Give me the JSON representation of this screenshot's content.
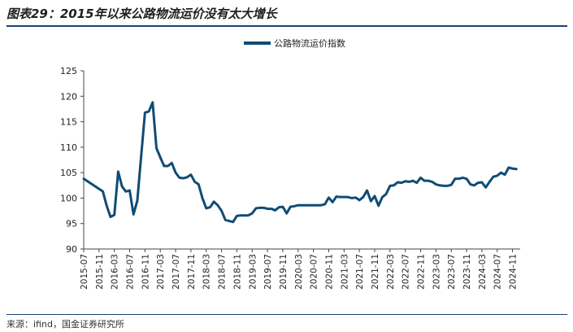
{
  "figure": {
    "title": "图表29：2015年以来公路物流运价没有太大增长",
    "source": "来源：ifind，国金证券研究所"
  },
  "colors": {
    "series": "#0f4c75",
    "axis": "#444444",
    "rule": "#1b3f72"
  },
  "chart_data": {
    "type": "line",
    "title": "",
    "xlabel": "",
    "ylabel": "",
    "ylim": [
      90,
      125
    ],
    "yticks": [
      90,
      95,
      100,
      105,
      110,
      115,
      120,
      125
    ],
    "grid": false,
    "legend_position": "top-center",
    "xtick_labels": [
      "2015-07",
      "2015-11",
      "2016-03",
      "2016-07",
      "2016-11",
      "2017-03",
      "2017-07",
      "2017-11",
      "2018-03",
      "2018-07",
      "2018-11",
      "2019-03",
      "2019-07",
      "2019-11",
      "2020-03",
      "2020-07",
      "2020-11",
      "2021-03",
      "2021-07",
      "2021-11",
      "2022-03",
      "2022-07",
      "2022-11",
      "2023-03",
      "2023-07",
      "2023-11",
      "2024-03",
      "2024-07",
      "2024-11"
    ],
    "series": [
      {
        "name": "公路物流运价指数",
        "points": [
          [
            "2015-07",
            103.8
          ],
          [
            "2015-08",
            103.3
          ],
          [
            "2015-09",
            102.8
          ],
          [
            "2015-10",
            102.3
          ],
          [
            "2015-11",
            101.8
          ],
          [
            "2015-12",
            101.3
          ],
          [
            "2016-01",
            98.5
          ],
          [
            "2016-02",
            96.3
          ],
          [
            "2016-03",
            96.7
          ],
          [
            "2016-04",
            105.2
          ],
          [
            "2016-05",
            102.3
          ],
          [
            "2016-06",
            101.3
          ],
          [
            "2016-07",
            101.5
          ],
          [
            "2016-08",
            96.8
          ],
          [
            "2016-09",
            99.5
          ],
          [
            "2016-10",
            108.2
          ],
          [
            "2016-11",
            116.8
          ],
          [
            "2016-12",
            117.0
          ],
          [
            "2017-01",
            118.8
          ],
          [
            "2017-02",
            109.8
          ],
          [
            "2017-03",
            108.0
          ],
          [
            "2017-04",
            106.3
          ],
          [
            "2017-05",
            106.3
          ],
          [
            "2017-06",
            106.9
          ],
          [
            "2017-07",
            105.0
          ],
          [
            "2017-08",
            104.0
          ],
          [
            "2017-09",
            103.9
          ],
          [
            "2017-10",
            104.1
          ],
          [
            "2017-11",
            104.6
          ],
          [
            "2017-12",
            103.2
          ],
          [
            "2018-01",
            102.7
          ],
          [
            "2018-02",
            100.0
          ],
          [
            "2018-03",
            98.0
          ],
          [
            "2018-04",
            98.2
          ],
          [
            "2018-05",
            99.3
          ],
          [
            "2018-06",
            98.6
          ],
          [
            "2018-07",
            97.5
          ],
          [
            "2018-08",
            95.7
          ],
          [
            "2018-09",
            95.5
          ],
          [
            "2018-10",
            95.3
          ],
          [
            "2018-11",
            96.5
          ],
          [
            "2018-12",
            96.6
          ],
          [
            "2019-01",
            96.6
          ],
          [
            "2019-02",
            96.6
          ],
          [
            "2019-03",
            97.0
          ],
          [
            "2019-04",
            98.0
          ],
          [
            "2019-05",
            98.1
          ],
          [
            "2019-06",
            98.1
          ],
          [
            "2019-07",
            97.9
          ],
          [
            "2019-08",
            97.9
          ],
          [
            "2019-09",
            97.6
          ],
          [
            "2019-10",
            98.2
          ],
          [
            "2019-11",
            98.3
          ],
          [
            "2019-12",
            97.0
          ],
          [
            "2020-01",
            98.3
          ],
          [
            "2020-02",
            98.4
          ],
          [
            "2020-03",
            98.6
          ],
          [
            "2020-04",
            98.6
          ],
          [
            "2020-05",
            98.6
          ],
          [
            "2020-06",
            98.6
          ],
          [
            "2020-07",
            98.6
          ],
          [
            "2020-08",
            98.6
          ],
          [
            "2020-09",
            98.6
          ],
          [
            "2020-10",
            98.8
          ],
          [
            "2020-11",
            100.1
          ],
          [
            "2020-12",
            99.2
          ],
          [
            "2021-01",
            100.3
          ],
          [
            "2021-02",
            100.2
          ],
          [
            "2021-03",
            100.2
          ],
          [
            "2021-04",
            100.2
          ],
          [
            "2021-05",
            100.0
          ],
          [
            "2021-06",
            100.1
          ],
          [
            "2021-07",
            99.6
          ],
          [
            "2021-08",
            100.2
          ],
          [
            "2021-09",
            101.5
          ],
          [
            "2021-10",
            99.4
          ],
          [
            "2021-11",
            100.4
          ],
          [
            "2021-12",
            98.5
          ],
          [
            "2022-01",
            100.2
          ],
          [
            "2022-02",
            100.8
          ],
          [
            "2022-03",
            102.4
          ],
          [
            "2022-04",
            102.5
          ],
          [
            "2022-05",
            103.1
          ],
          [
            "2022-06",
            103.0
          ],
          [
            "2022-07",
            103.3
          ],
          [
            "2022-08",
            103.2
          ],
          [
            "2022-09",
            103.4
          ],
          [
            "2022-10",
            103.0
          ],
          [
            "2022-11",
            104.0
          ],
          [
            "2022-12",
            103.4
          ],
          [
            "2023-01",
            103.4
          ],
          [
            "2023-02",
            103.2
          ],
          [
            "2023-03",
            102.7
          ],
          [
            "2023-04",
            102.5
          ],
          [
            "2023-05",
            102.4
          ],
          [
            "2023-06",
            102.4
          ],
          [
            "2023-07",
            102.6
          ],
          [
            "2023-08",
            103.8
          ],
          [
            "2023-09",
            103.8
          ],
          [
            "2023-10",
            104.0
          ],
          [
            "2023-11",
            103.8
          ],
          [
            "2023-12",
            102.7
          ],
          [
            "2024-01",
            102.5
          ],
          [
            "2024-02",
            103.0
          ],
          [
            "2024-03",
            103.1
          ],
          [
            "2024-04",
            102.1
          ],
          [
            "2024-05",
            103.2
          ],
          [
            "2024-06",
            104.2
          ],
          [
            "2024-07",
            104.4
          ],
          [
            "2024-08",
            105.0
          ],
          [
            "2024-09",
            104.6
          ],
          [
            "2024-10",
            106.0
          ],
          [
            "2024-11",
            105.8
          ],
          [
            "2024-12",
            105.7
          ]
        ]
      }
    ]
  }
}
